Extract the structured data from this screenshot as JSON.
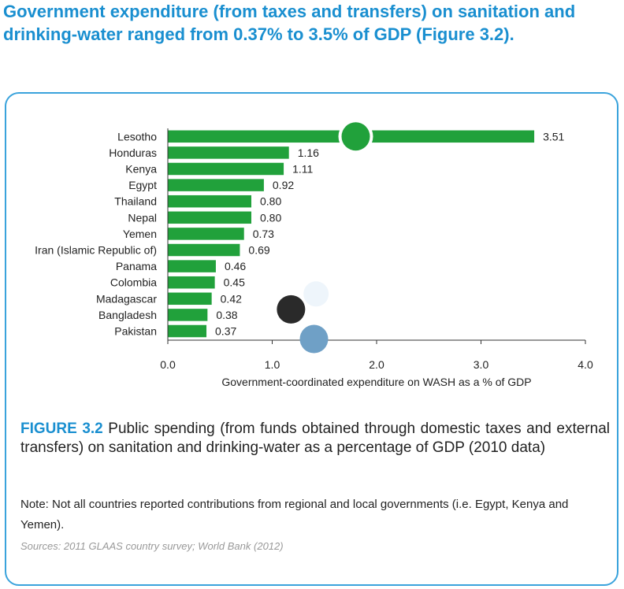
{
  "headline": "Government expenditure (from taxes and transfers) on sanitation and drinking-water ranged from 0.37% to 3.5% of GDP (Figure 3.2).",
  "caption": {
    "label": "FIGURE 3.2",
    "text": " Public spending (from funds obtained through domestic taxes and external transfers) on sanitation and drinking-water as a percentage of GDP (2010 data)"
  },
  "note": "Note: Not all countries reported contributions from regional and local governments (i.e. Egypt, Kenya and Yemen).",
  "sources": "Sources: 2011 GLAAS country survey; World Bank (2012)",
  "colors": {
    "accent": "#1a8fd0",
    "bar": "#21a13b",
    "dot_green": "#21a13b",
    "dot_dark": "#2a2a2a",
    "dot_blue": "#6fa0c6",
    "dot_pale": "#eef5fb"
  },
  "chart_data": {
    "type": "bar",
    "orientation": "horizontal",
    "categories": [
      "Lesotho",
      "Honduras",
      "Kenya",
      "Egypt",
      "Thailand",
      "Nepal",
      "Yemen",
      "Iran (Islamic Republic of)",
      "Panama",
      "Colombia",
      "Madagascar",
      "Bangladesh",
      "Pakistan"
    ],
    "values": [
      3.51,
      1.16,
      1.11,
      0.92,
      0.8,
      0.8,
      0.73,
      0.69,
      0.46,
      0.45,
      0.42,
      0.38,
      0.37
    ],
    "value_labels": [
      "3.51",
      "1.16",
      "1.11",
      "0.92",
      "0.80",
      "0.80",
      "0.73",
      "0.69",
      "0.46",
      "0.45",
      "0.42",
      "0.38",
      "0.37"
    ],
    "xlabel": "Government-coordinated expenditure on WASH as a % of GDP",
    "xlim": [
      0,
      4
    ],
    "xticks": [
      0,
      1,
      2,
      3,
      4
    ],
    "xtick_labels": [
      "0.0",
      "1.0",
      "2.0",
      "3.0",
      "4.0"
    ],
    "grid": false,
    "decorations": [
      {
        "name": "green-dot",
        "color": "dot_green",
        "value": 1.8,
        "category": "Lesotho"
      },
      {
        "name": "dark-dot",
        "color": "dot_dark",
        "value": 1.18,
        "category": "Bangladesh"
      },
      {
        "name": "blue-dot",
        "color": "dot_blue",
        "value": 1.4,
        "category": "Pakistan"
      },
      {
        "name": "pale-dot",
        "color": "dot_pale",
        "value": 1.42,
        "category": "Madagascar"
      }
    ]
  }
}
